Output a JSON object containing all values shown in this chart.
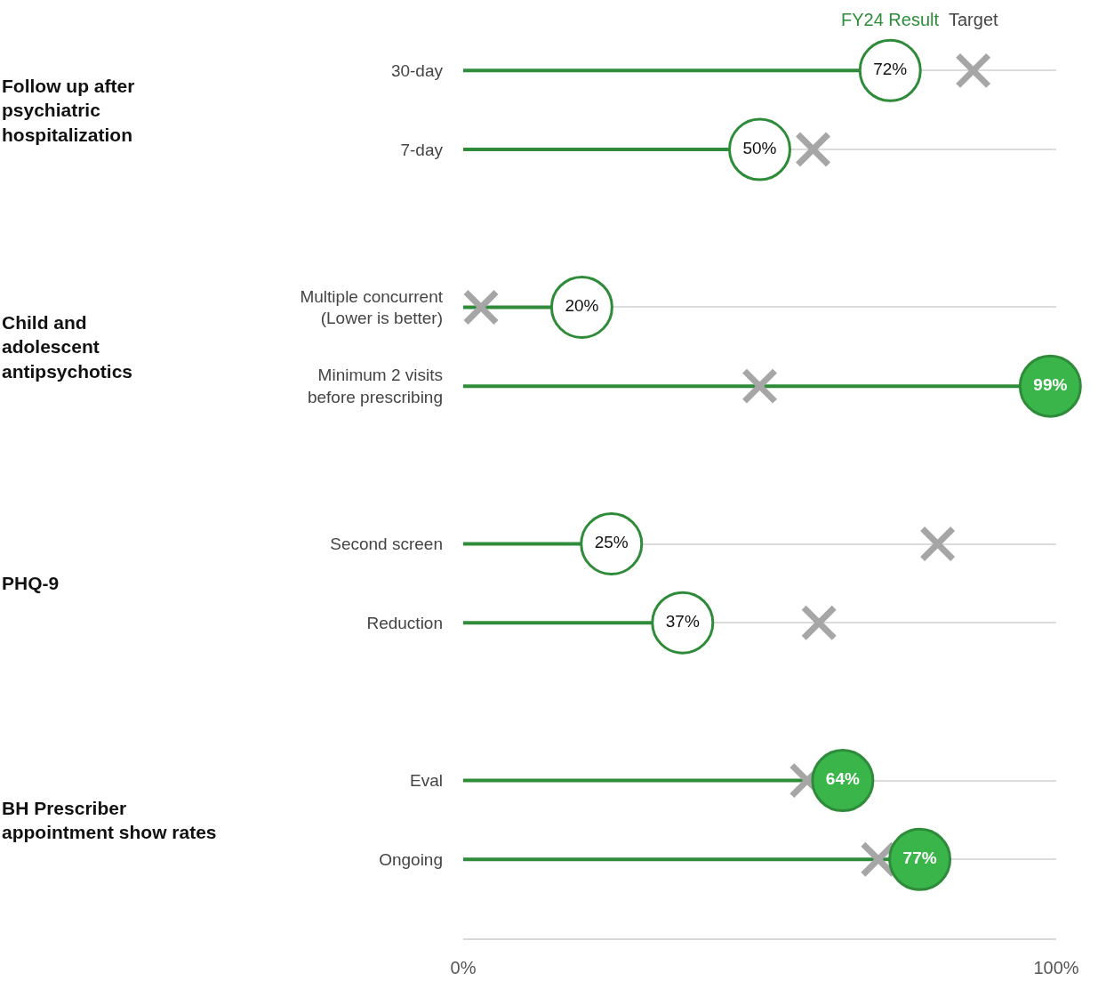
{
  "chart_data": {
    "type": "lollipop",
    "categories": [
      "30-day",
      "7-day",
      "Multiple concurrent\n(Lower is better)",
      "Minimum 2 visits\nbefore prescribing",
      "Second screen",
      "Reduction",
      "Eval",
      "Ongoing"
    ],
    "series": [
      {
        "name": "Target",
        "type": "scatter",
        "marker": "cross",
        "color": "#a6a6a6",
        "values": [
          86,
          59,
          3,
          50,
          80,
          60,
          58,
          70
        ]
      },
      {
        "name": "FY24 Result",
        "marker": "circle",
        "color": "#2e8b3a",
        "colors": [
          "#ffffff",
          "#ffffff",
          "#ffffff",
          "#3ab54a",
          "#ffffff",
          "#ffffff",
          "#3ab54a",
          "#3ab54a"
        ],
        "values": [
          72,
          50,
          20,
          99,
          25,
          37,
          64,
          77
        ],
        "value_labels": [
          "72%",
          "50%",
          "20%",
          "99%",
          "25%",
          "37%",
          "64%",
          "77%"
        ]
      }
    ],
    "annotations": [
      "Follow up after\npsychiatric\nhospitalization",
      "Child and\nadolescent\nantipsychotics",
      "PHQ-9",
      "BH Prescriber\nappointment show rates"
    ],
    "xlim": [
      0,
      100
    ],
    "xticks": [
      {
        "value": 0,
        "label": "0%"
      },
      {
        "value": 100,
        "label": "100%"
      }
    ],
    "orientation": "horizontal",
    "grid": "y"
  }
}
